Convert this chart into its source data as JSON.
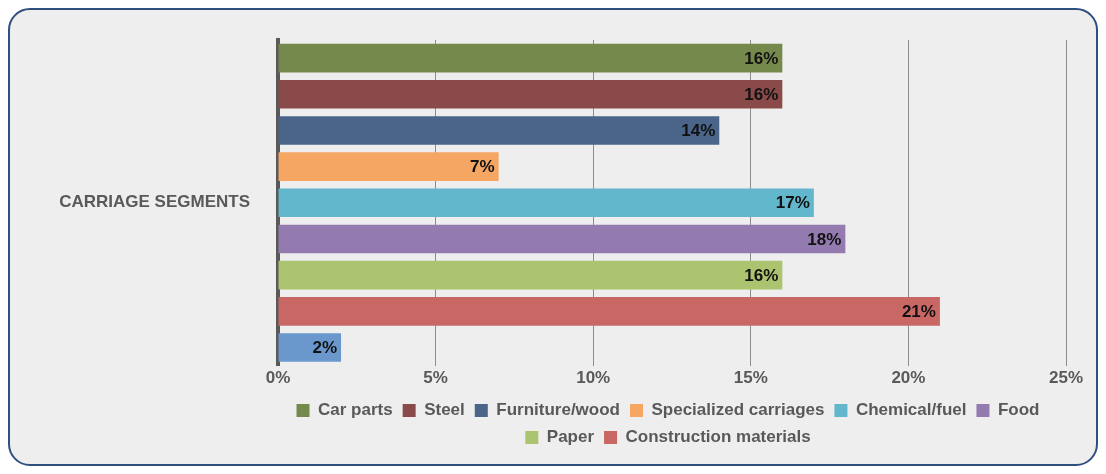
{
  "chart_data": {
    "type": "bar",
    "orientation": "horizontal",
    "stacked": true,
    "ylabel": "CARRIAGE SEGMENTS",
    "categories": [
      null,
      null,
      null,
      null,
      null,
      null,
      null,
      null,
      null
    ],
    "series": [
      {
        "name": "Car parts",
        "color": "#76894c",
        "values": [
          16,
          null,
          null,
          null,
          null,
          null,
          null,
          null,
          null
        ],
        "value_labels": [
          "16%",
          null,
          null,
          null,
          null,
          null,
          null,
          null,
          null
        ]
      },
      {
        "name": "Steel",
        "color": "#8b4a4a",
        "values": [
          null,
          16,
          null,
          null,
          null,
          null,
          null,
          null,
          null
        ],
        "value_labels": [
          null,
          "16%",
          null,
          null,
          null,
          null,
          null,
          null,
          null
        ]
      },
      {
        "name": "Furniture/wood",
        "color": "#4a6589",
        "values": [
          null,
          null,
          14,
          null,
          null,
          null,
          null,
          null,
          null
        ],
        "value_labels": [
          null,
          null,
          "14%",
          null,
          null,
          null,
          null,
          null,
          null
        ]
      },
      {
        "name": "Specialized carriages",
        "color": "#f5a662",
        "values": [
          null,
          null,
          null,
          7,
          null,
          null,
          null,
          null,
          null
        ],
        "value_labels": [
          null,
          null,
          null,
          "7%",
          null,
          null,
          null,
          null,
          null
        ]
      },
      {
        "name": "Chemical/fuel",
        "color": "#63b7cd",
        "values": [
          null,
          null,
          null,
          null,
          17,
          null,
          null,
          null,
          null
        ],
        "value_labels": [
          null,
          null,
          null,
          null,
          "17%",
          null,
          null,
          null,
          null
        ]
      },
      {
        "name": "Food",
        "color": "#937bb0",
        "values": [
          null,
          null,
          null,
          null,
          null,
          18,
          null,
          null,
          null
        ],
        "value_labels": [
          null,
          null,
          null,
          null,
          null,
          "18%",
          null,
          null,
          null
        ]
      },
      {
        "name": "Paper",
        "color": "#acc46f",
        "values": [
          null,
          null,
          null,
          null,
          null,
          null,
          16,
          null,
          null
        ],
        "value_labels": [
          null,
          null,
          null,
          null,
          null,
          null,
          "16%",
          null,
          null
        ]
      },
      {
        "name": "Construction materials",
        "color": "#c96764",
        "values": [
          null,
          null,
          null,
          null,
          null,
          null,
          null,
          21,
          null
        ],
        "value_labels": [
          null,
          null,
          null,
          null,
          null,
          null,
          null,
          "21%",
          null
        ]
      },
      {
        "color": "#6a98cc",
        "values": [
          null,
          null,
          null,
          null,
          null,
          null,
          null,
          null,
          2
        ],
        "value_labels": [
          null,
          null,
          null,
          null,
          null,
          null,
          null,
          null,
          "2%"
        ]
      }
    ],
    "xlim": [
      0,
      25
    ],
    "xticks": [
      {
        "value": 0,
        "label": "0%"
      },
      {
        "value": 5,
        "label": "5%"
      },
      {
        "value": 10,
        "label": "10%"
      },
      {
        "value": 15,
        "label": "15%"
      },
      {
        "value": 20,
        "label": "20%"
      },
      {
        "value": 25,
        "label": "25%"
      }
    ],
    "grid": "x",
    "legend": "bottom"
  }
}
